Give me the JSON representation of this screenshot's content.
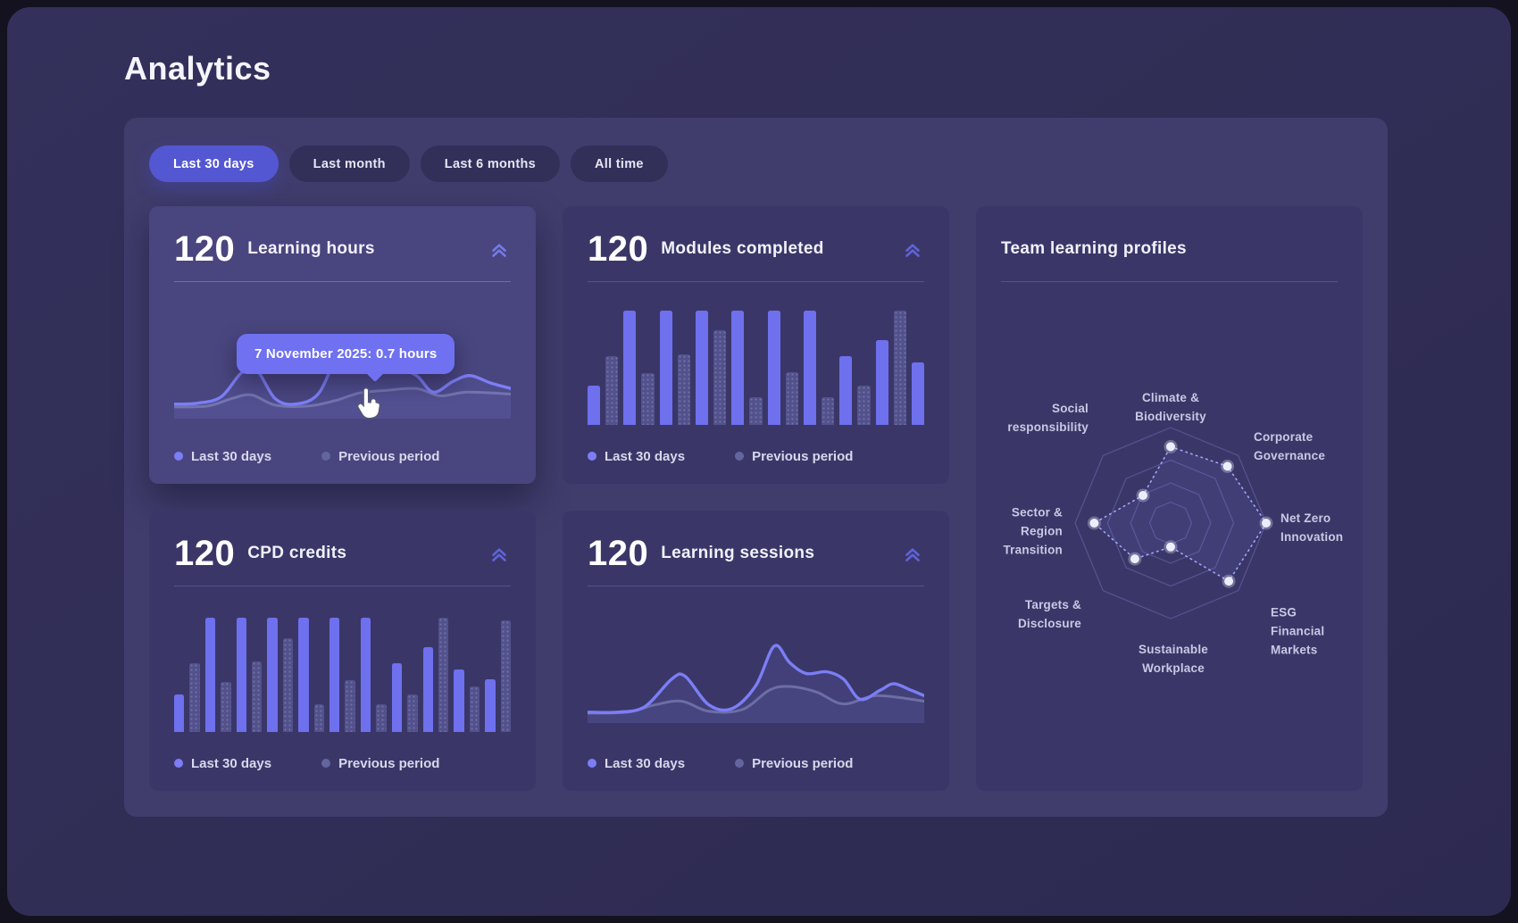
{
  "page_title": "Analytics",
  "filters": [
    {
      "label": "Last 30 days",
      "active": true
    },
    {
      "label": "Last month",
      "active": false
    },
    {
      "label": "Last 6 months",
      "active": false
    },
    {
      "label": "All time",
      "active": false
    }
  ],
  "legend": {
    "current": "Last 30 days",
    "previous": "Previous period"
  },
  "cards": {
    "learning_hours": {
      "value": "120",
      "label": "Learning hours"
    },
    "modules_completed": {
      "value": "120",
      "label": "Modules completed"
    },
    "cpd_credits": {
      "value": "120",
      "label": "CPD credits"
    },
    "learning_sessions": {
      "value": "120",
      "label": "Learning sessions"
    },
    "team_profiles": {
      "title": "Team learning profiles"
    }
  },
  "tooltip": {
    "text": "7 November 2025: 0.7 hours"
  },
  "colors": {
    "accent": "#6f71f1",
    "pill_active": "#5457d2",
    "bar_current": "#6e70ee",
    "series_current": "#7b7ef5",
    "series_previous": "#63659f",
    "line_previous": "#8f91c9"
  },
  "chart_data": [
    {
      "id": "learning-hours",
      "type": "line",
      "title": "Learning hours",
      "total": 120,
      "legend": [
        "Last 30 days",
        "Previous period"
      ],
      "tooltip": {
        "date": "7 November 2025",
        "value": 0.7,
        "unit": "hours"
      },
      "series": [
        {
          "name": "Last 30 days",
          "points": [
            [
              0,
              0.1
            ],
            [
              0.07,
              0.11
            ],
            [
              0.14,
              0.18
            ],
            [
              0.2,
              0.44
            ],
            [
              0.245,
              0.47
            ],
            [
              0.3,
              0.16
            ],
            [
              0.36,
              0.1
            ],
            [
              0.43,
              0.22
            ],
            [
              0.49,
              0.7
            ],
            [
              0.515,
              0.74
            ],
            [
              0.55,
              0.56
            ],
            [
              0.6,
              0.46
            ],
            [
              0.66,
              0.49
            ],
            [
              0.72,
              0.41
            ],
            [
              0.77,
              0.23
            ],
            [
              0.83,
              0.35
            ],
            [
              0.88,
              0.41
            ],
            [
              0.94,
              0.33
            ],
            [
              1,
              0.27
            ]
          ]
        },
        {
          "name": "Previous period",
          "points": [
            [
              0,
              0.07
            ],
            [
              0.1,
              0.08
            ],
            [
              0.17,
              0.16
            ],
            [
              0.23,
              0.2
            ],
            [
              0.3,
              0.09
            ],
            [
              0.4,
              0.08
            ],
            [
              0.48,
              0.14
            ],
            [
              0.55,
              0.22
            ],
            [
              0.63,
              0.25
            ],
            [
              0.72,
              0.27
            ],
            [
              0.79,
              0.19
            ],
            [
              0.87,
              0.23
            ],
            [
              1,
              0.21
            ]
          ]
        }
      ]
    },
    {
      "id": "modules-completed",
      "type": "bar",
      "title": "Modules completed",
      "total": 120,
      "legend": [
        "Last 30 days",
        "Previous period"
      ],
      "pattern": "alternating-current-previous",
      "values": [
        0.34,
        0.6,
        1.0,
        0.45,
        1.0,
        0.62,
        1.0,
        0.83,
        1.0,
        0.24,
        1.0,
        0.46,
        1.0,
        0.24,
        0.6,
        0.34,
        0.74,
        1.0,
        0.55
      ]
    },
    {
      "id": "cpd-credits",
      "type": "bar",
      "title": "CPD credits",
      "total": 120,
      "legend": [
        "Last 30 days",
        "Previous period"
      ],
      "pattern": "alternating-current-previous",
      "values": [
        0.33,
        0.6,
        1.0,
        0.44,
        1.0,
        0.62,
        1.0,
        0.82,
        1.0,
        0.24,
        1.0,
        0.45,
        1.0,
        0.24,
        0.6,
        0.33,
        0.74,
        1.0,
        0.55,
        0.4,
        0.46,
        0.98
      ]
    },
    {
      "id": "learning-sessions",
      "type": "line",
      "title": "Learning sessions",
      "total": 120,
      "legend": [
        "Last 30 days",
        "Previous period"
      ],
      "series": [
        {
          "name": "Last 30 days",
          "points": [
            [
              0,
              0.06
            ],
            [
              0.09,
              0.06
            ],
            [
              0.17,
              0.12
            ],
            [
              0.25,
              0.42
            ],
            [
              0.29,
              0.45
            ],
            [
              0.36,
              0.14
            ],
            [
              0.43,
              0.1
            ],
            [
              0.5,
              0.35
            ],
            [
              0.555,
              0.78
            ],
            [
              0.6,
              0.6
            ],
            [
              0.65,
              0.48
            ],
            [
              0.71,
              0.5
            ],
            [
              0.76,
              0.42
            ],
            [
              0.81,
              0.2
            ],
            [
              0.87,
              0.3
            ],
            [
              0.91,
              0.37
            ],
            [
              0.96,
              0.3
            ],
            [
              1,
              0.24
            ]
          ]
        },
        {
          "name": "Previous period",
          "points": [
            [
              0,
              0.05
            ],
            [
              0.12,
              0.06
            ],
            [
              0.2,
              0.14
            ],
            [
              0.28,
              0.18
            ],
            [
              0.36,
              0.07
            ],
            [
              0.46,
              0.09
            ],
            [
              0.54,
              0.3
            ],
            [
              0.6,
              0.34
            ],
            [
              0.68,
              0.28
            ],
            [
              0.76,
              0.15
            ],
            [
              0.86,
              0.24
            ],
            [
              1,
              0.18
            ]
          ]
        }
      ]
    },
    {
      "id": "team-profiles",
      "type": "radar",
      "title": "Team learning profiles",
      "rings": [
        1,
        0.66,
        0.42,
        0.22
      ],
      "axes": [
        {
          "label": "Climate &\nBiodiversity",
          "value": 0.8
        },
        {
          "label": "Corporate\nGovernance",
          "value": 0.84
        },
        {
          "label": "Net Zero\nInnovation",
          "value": 1.0
        },
        {
          "label": "ESG\nFinancial\nMarkets",
          "value": 0.86
        },
        {
          "label": "Sustainable\nWorkplace",
          "value": 0.25
        },
        {
          "label": "Targets &\nDisclosure",
          "value": 0.53
        },
        {
          "label": "Sector &\nRegion\nTransition",
          "value": 0.8
        },
        {
          "label": "Social\nresponsibility",
          "value": 0.41
        }
      ]
    }
  ]
}
